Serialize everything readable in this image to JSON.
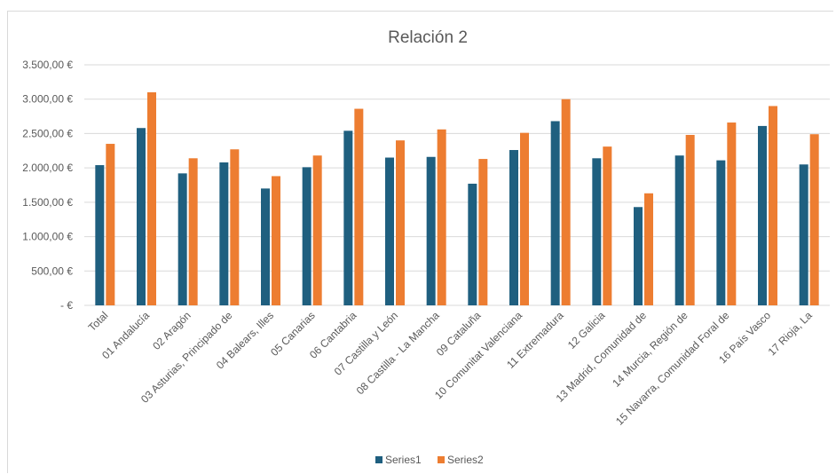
{
  "chart_data": {
    "type": "bar",
    "title": "Relación 2",
    "xlabel": "",
    "ylabel": "",
    "ylim": [
      0,
      3500
    ],
    "yticks": [
      0,
      500,
      1000,
      1500,
      2000,
      2500,
      3000,
      3500
    ],
    "ytick_labels": [
      "-  €",
      "500,00 €",
      "1.000,00 €",
      "1.500,00 €",
      "2.000,00 €",
      "2.500,00 €",
      "3.000,00 €",
      "3.500,00 €"
    ],
    "grid": true,
    "legend_position": "bottom",
    "categories": [
      "Total",
      "01 Andalucía",
      "02 Aragón",
      "03 Asturias, Principado de",
      "04 Balears, Illes",
      "05 Canarias",
      "06 Cantabria",
      "07 Castilla y León",
      "08 Castilla - La Mancha",
      "09 Cataluña",
      "10 Comunitat Valenciana",
      "11 Extremadura",
      "12 Galicia",
      "13 Madrid, Comunidad de",
      "14 Murcia, Región de",
      "15 Navarra, Comunidad Foral de",
      "16 País Vasco",
      "17 Rioja, La"
    ],
    "series": [
      {
        "name": "Series1",
        "color": "#1f5f7f",
        "values": [
          2040,
          2580,
          1920,
          2080,
          1700,
          2010,
          2540,
          2150,
          2160,
          1770,
          2260,
          2680,
          2140,
          1430,
          2180,
          2110,
          2610,
          2050
        ]
      },
      {
        "name": "Series2",
        "color": "#ed7d31",
        "values": [
          2350,
          3100,
          2140,
          2270,
          1880,
          2180,
          2860,
          2400,
          2560,
          2130,
          2510,
          3000,
          2310,
          1630,
          2480,
          2660,
          2900,
          2490
        ]
      }
    ]
  }
}
